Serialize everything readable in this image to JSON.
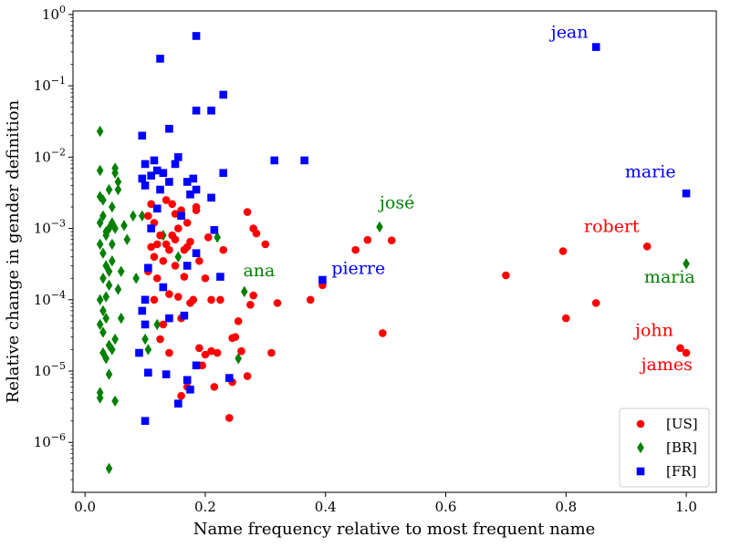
{
  "chart_data": {
    "type": "scatter",
    "xlabel": "Name frequency relative to most frequent name",
    "ylabel": "Relative change in gender definition",
    "xlim": [
      -0.02,
      1.05
    ],
    "ylim_log10": [
      -6.7,
      0.05
    ],
    "yscale": "log",
    "grid": false,
    "legend_position": "lower-right",
    "x_ticks": [
      {
        "value": 0.0,
        "label": "0.0"
      },
      {
        "value": 0.2,
        "label": "0.2"
      },
      {
        "value": 0.4,
        "label": "0.4"
      },
      {
        "value": 0.6,
        "label": "0.6"
      },
      {
        "value": 0.8,
        "label": "0.8"
      },
      {
        "value": 1.0,
        "label": "1.0"
      }
    ],
    "y_ticks": [
      {
        "exp": 0,
        "base": "10",
        "sup": "0"
      },
      {
        "exp": -1,
        "base": "10",
        "sup": "−1"
      },
      {
        "exp": -2,
        "base": "10",
        "sup": "−2"
      },
      {
        "exp": -3,
        "base": "10",
        "sup": "−3"
      },
      {
        "exp": -4,
        "base": "10",
        "sup": "−4"
      },
      {
        "exp": -5,
        "base": "10",
        "sup": "−5"
      },
      {
        "exp": -6,
        "base": "10",
        "sup": "−6"
      }
    ],
    "series": [
      {
        "name": "[US]",
        "marker": "circle",
        "color": "#ff0000",
        "points": [
          [
            1.0,
            1.8e-05
          ],
          [
            0.99,
            2.1e-05
          ],
          [
            0.935,
            0.00056
          ],
          [
            0.85,
            9e-05
          ],
          [
            0.8,
            5.5e-05
          ],
          [
            0.795,
            0.00048
          ],
          [
            0.7,
            0.00022
          ],
          [
            0.51,
            0.00068
          ],
          [
            0.495,
            3.4e-05
          ],
          [
            0.47,
            0.00069
          ],
          [
            0.45,
            0.0005
          ],
          [
            0.395,
            0.00016
          ],
          [
            0.375,
            0.0001
          ],
          [
            0.32,
            9e-05
          ],
          [
            0.31,
            1.8e-05
          ],
          [
            0.3,
            0.0006
          ],
          [
            0.285,
            0.00085
          ],
          [
            0.28,
            0.001
          ],
          [
            0.28,
            0.000115
          ],
          [
            0.275,
            8.5e-05
          ],
          [
            0.27,
            0.0017
          ],
          [
            0.27,
            8.5e-06
          ],
          [
            0.26,
            1.9e-05
          ],
          [
            0.255,
            5e-05
          ],
          [
            0.25,
            3e-05
          ],
          [
            0.245,
            2.9e-05
          ],
          [
            0.245,
            7e-06
          ],
          [
            0.24,
            2.2e-06
          ],
          [
            0.23,
            0.0005
          ],
          [
            0.225,
            0.0001
          ],
          [
            0.22,
            1.8e-05
          ],
          [
            0.215,
            6e-06
          ],
          [
            0.21,
            1.9e-05
          ],
          [
            0.21,
            0.0001
          ],
          [
            0.205,
            0.00075
          ],
          [
            0.2,
            0.0002
          ],
          [
            0.2,
            1.7e-05
          ],
          [
            0.195,
            1.2e-05
          ],
          [
            0.19,
            2.1e-05
          ],
          [
            0.19,
            0.00035
          ],
          [
            0.185,
            0.002
          ],
          [
            0.185,
            0.0018
          ],
          [
            0.18,
            0.0001
          ],
          [
            0.175,
            0.00065
          ],
          [
            0.175,
            9e-05
          ],
          [
            0.17,
            0.0012
          ],
          [
            0.17,
            0.00055
          ],
          [
            0.17,
            6e-06
          ],
          [
            0.165,
            0.0005
          ],
          [
            0.165,
            0.00021
          ],
          [
            0.16,
            0.0018
          ],
          [
            0.16,
            5.5e-05
          ],
          [
            0.16,
            4.5e-06
          ],
          [
            0.155,
            0.001
          ],
          [
            0.155,
            0.00011
          ],
          [
            0.15,
            0.0016
          ],
          [
            0.15,
            0.0007
          ],
          [
            0.15,
            0.0003
          ],
          [
            0.145,
            0.0022
          ],
          [
            0.145,
            0.0008
          ],
          [
            0.14,
            0.0005
          ],
          [
            0.14,
            0.00012
          ],
          [
            0.14,
            1.8e-05
          ],
          [
            0.135,
            0.0006
          ],
          [
            0.135,
            0.0025
          ],
          [
            0.13,
            0.00035
          ],
          [
            0.13,
            4.5e-05
          ],
          [
            0.125,
            0.0008
          ],
          [
            0.125,
            2.8e-05
          ],
          [
            0.12,
            0.0006
          ],
          [
            0.12,
            0.0002
          ],
          [
            0.115,
            0.0012
          ],
          [
            0.115,
            0.0004
          ],
          [
            0.115,
            0.0001
          ],
          [
            0.11,
            0.0022
          ],
          [
            0.11,
            0.00055
          ],
          [
            0.105,
            0.0015
          ],
          [
            0.105,
            0.00025
          ]
        ]
      },
      {
        "name": "[BR]",
        "marker": "diamond",
        "color": "#008000",
        "points": [
          [
            1.0,
            0.00032
          ],
          [
            0.49,
            0.00105
          ],
          [
            0.265,
            0.00013
          ],
          [
            0.255,
            1.5e-05
          ],
          [
            0.22,
            0.00075
          ],
          [
            0.155,
            0.0004
          ],
          [
            0.13,
            0.0008
          ],
          [
            0.12,
            4.5e-05
          ],
          [
            0.105,
            2e-05
          ],
          [
            0.1,
            2.8e-05
          ],
          [
            0.095,
            0.0015
          ],
          [
            0.085,
            0.0002
          ],
          [
            0.08,
            0.0015
          ],
          [
            0.07,
            0.0007
          ],
          [
            0.065,
            0.0011
          ],
          [
            0.06,
            5.5e-05
          ],
          [
            0.06,
            0.00025
          ],
          [
            0.055,
            0.00014
          ],
          [
            0.055,
            0.0045
          ],
          [
            0.055,
            0.0035
          ],
          [
            0.05,
            0.007
          ],
          [
            0.05,
            0.006
          ],
          [
            0.05,
            0.001
          ],
          [
            0.05,
            2.8e-05
          ],
          [
            0.05,
            3.8e-06
          ],
          [
            0.045,
            0.002
          ],
          [
            0.045,
            0.0012
          ],
          [
            0.045,
            0.0006
          ],
          [
            0.045,
            2e-05
          ],
          [
            0.04,
            0.0035
          ],
          [
            0.04,
            0.001
          ],
          [
            0.04,
            0.00016
          ],
          [
            0.04,
            9e-06
          ],
          [
            0.04,
            4.3e-07
          ],
          [
            0.035,
            0.0003
          ],
          [
            0.035,
            1.5e-05
          ],
          [
            0.035,
            0.0008
          ],
          [
            0.03,
            0.0025
          ],
          [
            0.03,
            0.0015
          ],
          [
            0.03,
            7e-05
          ],
          [
            0.03,
            1.8e-05
          ],
          [
            0.025,
            0.0065
          ],
          [
            0.025,
            0.0028
          ],
          [
            0.025,
            0.0012
          ],
          [
            0.025,
            0.0001
          ],
          [
            0.025,
            4.5e-05
          ],
          [
            0.025,
            5e-06
          ],
          [
            0.025,
            4.2e-06
          ],
          [
            0.025,
            0.023
          ],
          [
            0.035,
            0.0009
          ],
          [
            0.03,
            0.00045
          ],
          [
            0.04,
            0.00025
          ],
          [
            0.035,
            0.00011
          ],
          [
            0.045,
            0.00035
          ],
          [
            0.03,
            0.0002
          ],
          [
            0.025,
            0.0006
          ],
          [
            0.035,
            5.5e-05
          ],
          [
            0.04,
            2.3e-05
          ],
          [
            0.03,
            3.5e-05
          ]
        ]
      },
      {
        "name": "[FR]",
        "marker": "square",
        "color": "#0000ff",
        "points": [
          [
            0.85,
            0.35
          ],
          [
            1.0,
            0.0031
          ],
          [
            0.395,
            0.00019
          ],
          [
            0.365,
            0.009
          ],
          [
            0.315,
            0.009
          ],
          [
            0.24,
            8e-06
          ],
          [
            0.23,
            0.075
          ],
          [
            0.23,
            0.006
          ],
          [
            0.225,
            0.00021
          ],
          [
            0.215,
            0.00095
          ],
          [
            0.21,
            0.045
          ],
          [
            0.21,
            0.0027
          ],
          [
            0.185,
            0.5
          ],
          [
            0.185,
            0.045
          ],
          [
            0.185,
            0.0035
          ],
          [
            0.185,
            0.00045
          ],
          [
            0.185,
            1.2e-05
          ],
          [
            0.18,
            0.005
          ],
          [
            0.175,
            0.003
          ],
          [
            0.175,
            5.5e-06
          ],
          [
            0.17,
            7.5e-06
          ],
          [
            0.17,
            0.0045
          ],
          [
            0.17,
            0.0003
          ],
          [
            0.165,
            6e-05
          ],
          [
            0.16,
            0.0015
          ],
          [
            0.155,
            0.01
          ],
          [
            0.155,
            3.5e-06
          ],
          [
            0.15,
            0.008
          ],
          [
            0.14,
            0.025
          ],
          [
            0.14,
            0.0045
          ],
          [
            0.14,
            5.5e-05
          ],
          [
            0.135,
            9e-06
          ],
          [
            0.13,
            0.006
          ],
          [
            0.13,
            0.00015
          ],
          [
            0.125,
            0.24
          ],
          [
            0.125,
            0.0035
          ],
          [
            0.12,
            0.0065
          ],
          [
            0.12,
            0.0019
          ],
          [
            0.115,
            0.009
          ],
          [
            0.11,
            0.0055
          ],
          [
            0.11,
            0.001
          ],
          [
            0.105,
            0.00028
          ],
          [
            0.105,
            9.5e-06
          ],
          [
            0.1,
            0.008
          ],
          [
            0.1,
            0.004
          ],
          [
            0.1,
            0.0001
          ],
          [
            0.1,
            4.5e-05
          ],
          [
            0.1,
            2e-06
          ],
          [
            0.095,
            0.02
          ],
          [
            0.095,
            0.005
          ],
          [
            0.095,
            7e-05
          ],
          [
            0.09,
            1.8e-05
          ]
        ]
      }
    ],
    "annotations": [
      {
        "text": "jean",
        "x": 0.775,
        "logy": -0.33,
        "color": "#0000ff"
      },
      {
        "text": "marie",
        "x": 0.898,
        "logy": -2.28,
        "color": "#0000ff"
      },
      {
        "text": "pierre",
        "x": 0.41,
        "logy": -3.64,
        "color": "#0000ff"
      },
      {
        "text": "josé",
        "x": 0.49,
        "logy": -2.72,
        "color": "#008000"
      },
      {
        "text": "ana",
        "x": 0.263,
        "logy": -3.67,
        "color": "#008000"
      },
      {
        "text": "maria",
        "x": 0.93,
        "logy": -3.76,
        "color": "#008000"
      },
      {
        "text": "robert",
        "x": 0.83,
        "logy": -3.05,
        "color": "#ff0000"
      },
      {
        "text": "john",
        "x": 0.915,
        "logy": -4.51,
        "color": "#ff0000"
      },
      {
        "text": "james",
        "x": 0.925,
        "logy": -4.99,
        "color": "#ff0000"
      }
    ]
  }
}
